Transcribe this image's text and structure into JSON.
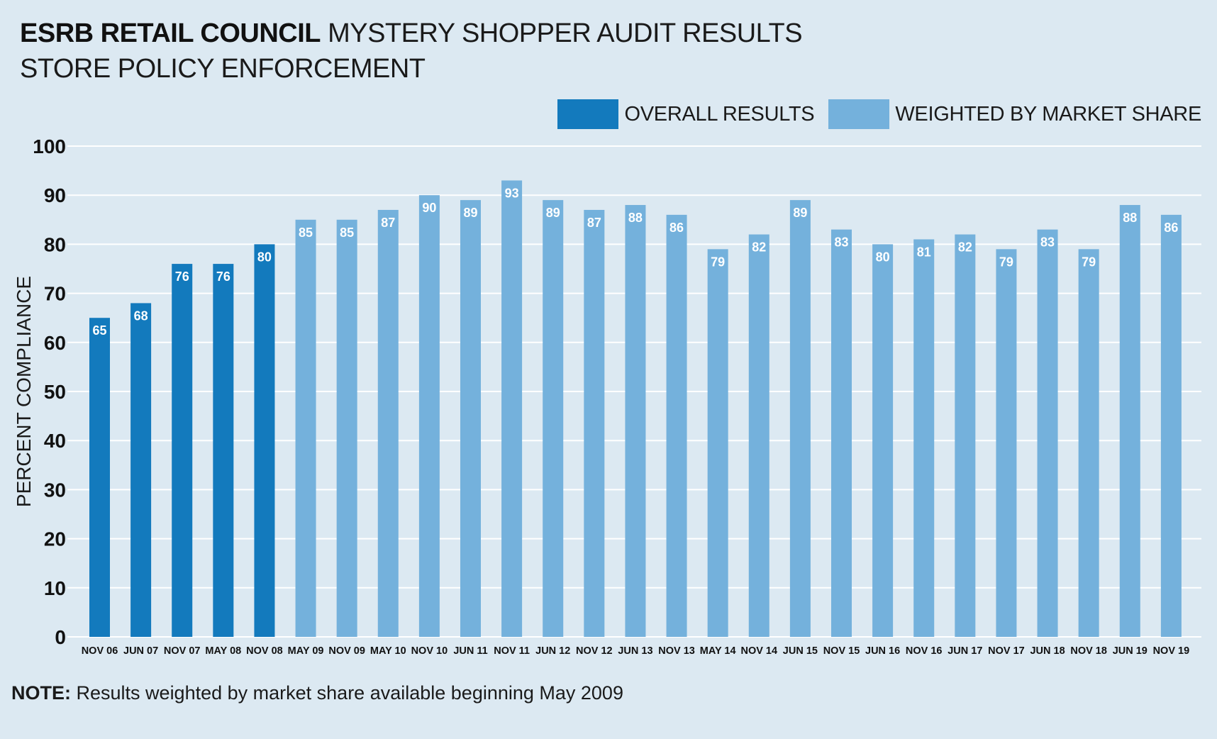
{
  "header": {
    "title_bold": "ESRB RETAIL COUNCIL",
    "title_light": "MYSTERY SHOPPER AUDIT RESULTS",
    "subtitle": "STORE POLICY ENFORCEMENT"
  },
  "legend": {
    "overall_label": "OVERALL RESULTS",
    "weighted_label": "WEIGHTED BY MARKET SHARE"
  },
  "colors": {
    "overall": "#137abd",
    "weighted": "#74b1dc",
    "grid": "#ffffff",
    "background": "#dce9f2"
  },
  "note": {
    "label": "NOTE:",
    "text": "Results weighted by market share available beginning May 2009"
  },
  "chart_data": {
    "type": "bar",
    "ylabel": "PERCENT COMPLIANCE",
    "ylim": [
      0,
      100
    ],
    "yticks": [
      0,
      10,
      20,
      30,
      40,
      50,
      60,
      70,
      80,
      90,
      100
    ],
    "grid": true,
    "legend_position": "top-right",
    "categories": [
      "NOV 06",
      "JUN 07",
      "NOV 07",
      "MAY 08",
      "NOV 08",
      "MAY 09",
      "NOV 09",
      "MAY 10",
      "NOV 10",
      "JUN 11",
      "NOV 11",
      "JUN 12",
      "NOV 12",
      "JUN 13",
      "NOV 13",
      "MAY 14",
      "NOV 14",
      "JUN 15",
      "NOV 15",
      "JUN 16",
      "NOV 16",
      "JUN 17",
      "NOV 17",
      "JUN 18",
      "NOV 18",
      "JUN 19",
      "NOV 19"
    ],
    "series": [
      {
        "name": "OVERALL RESULTS",
        "values": [
          65,
          68,
          76,
          76,
          80,
          null,
          null,
          null,
          null,
          null,
          null,
          null,
          null,
          null,
          null,
          null,
          null,
          null,
          null,
          null,
          null,
          null,
          null,
          null,
          null,
          null,
          null
        ]
      },
      {
        "name": "WEIGHTED BY MARKET SHARE",
        "values": [
          null,
          null,
          null,
          null,
          null,
          85,
          85,
          87,
          90,
          89,
          93,
          89,
          87,
          88,
          86,
          79,
          82,
          89,
          83,
          80,
          81,
          82,
          79,
          83,
          79,
          88,
          86
        ]
      }
    ]
  }
}
